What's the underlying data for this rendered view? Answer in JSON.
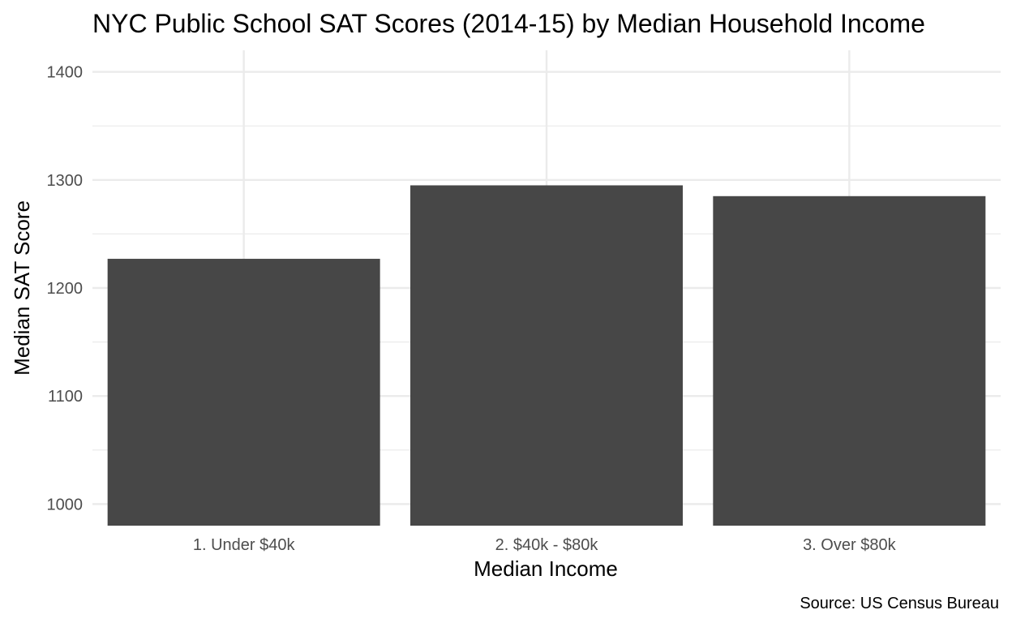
{
  "chart_data": {
    "type": "bar",
    "title": "NYC Public School SAT Scores (2014-15) by Median Household Income",
    "xlabel": "Median Income",
    "ylabel": "Median SAT Score",
    "caption": "Source: US Census Bureau",
    "categories": [
      "1. Under $40k",
      "2. $40k - $80k",
      "3. Over $80k"
    ],
    "values": [
      1227,
      1295,
      1285
    ],
    "ylim": [
      980,
      1420
    ],
    "yticks": [
      1000,
      1100,
      1200,
      1300,
      1400
    ],
    "ytick_labels": [
      "1000",
      "1100",
      "1200",
      "1300",
      "1400"
    ],
    "grid": true,
    "bar_color": "#474747",
    "grid_color": "#ebebeb"
  }
}
